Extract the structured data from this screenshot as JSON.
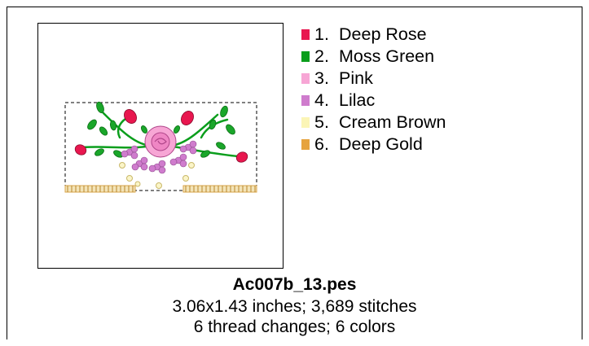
{
  "colors": [
    {
      "number": "1.",
      "name": "Deep Rose",
      "hex": "#e8174f"
    },
    {
      "number": "2.",
      "name": "Moss Green",
      "hex": "#0a9e1c"
    },
    {
      "number": "3.",
      "name": "Pink",
      "hex": "#f7a6d5"
    },
    {
      "number": "4.",
      "name": "Lilac",
      "hex": "#cf7ccd"
    },
    {
      "number": "5.",
      "name": "Cream Brown",
      "hex": "#fbf5b6"
    },
    {
      "number": "6.",
      "name": "Deep Gold",
      "hex": "#e6a33e"
    }
  ],
  "file": {
    "name": "Ac007b_13.pes",
    "size_line": "3.06x1.43 inches; 3,689 stitches",
    "changes_line": "6 thread changes; 6 colors"
  }
}
